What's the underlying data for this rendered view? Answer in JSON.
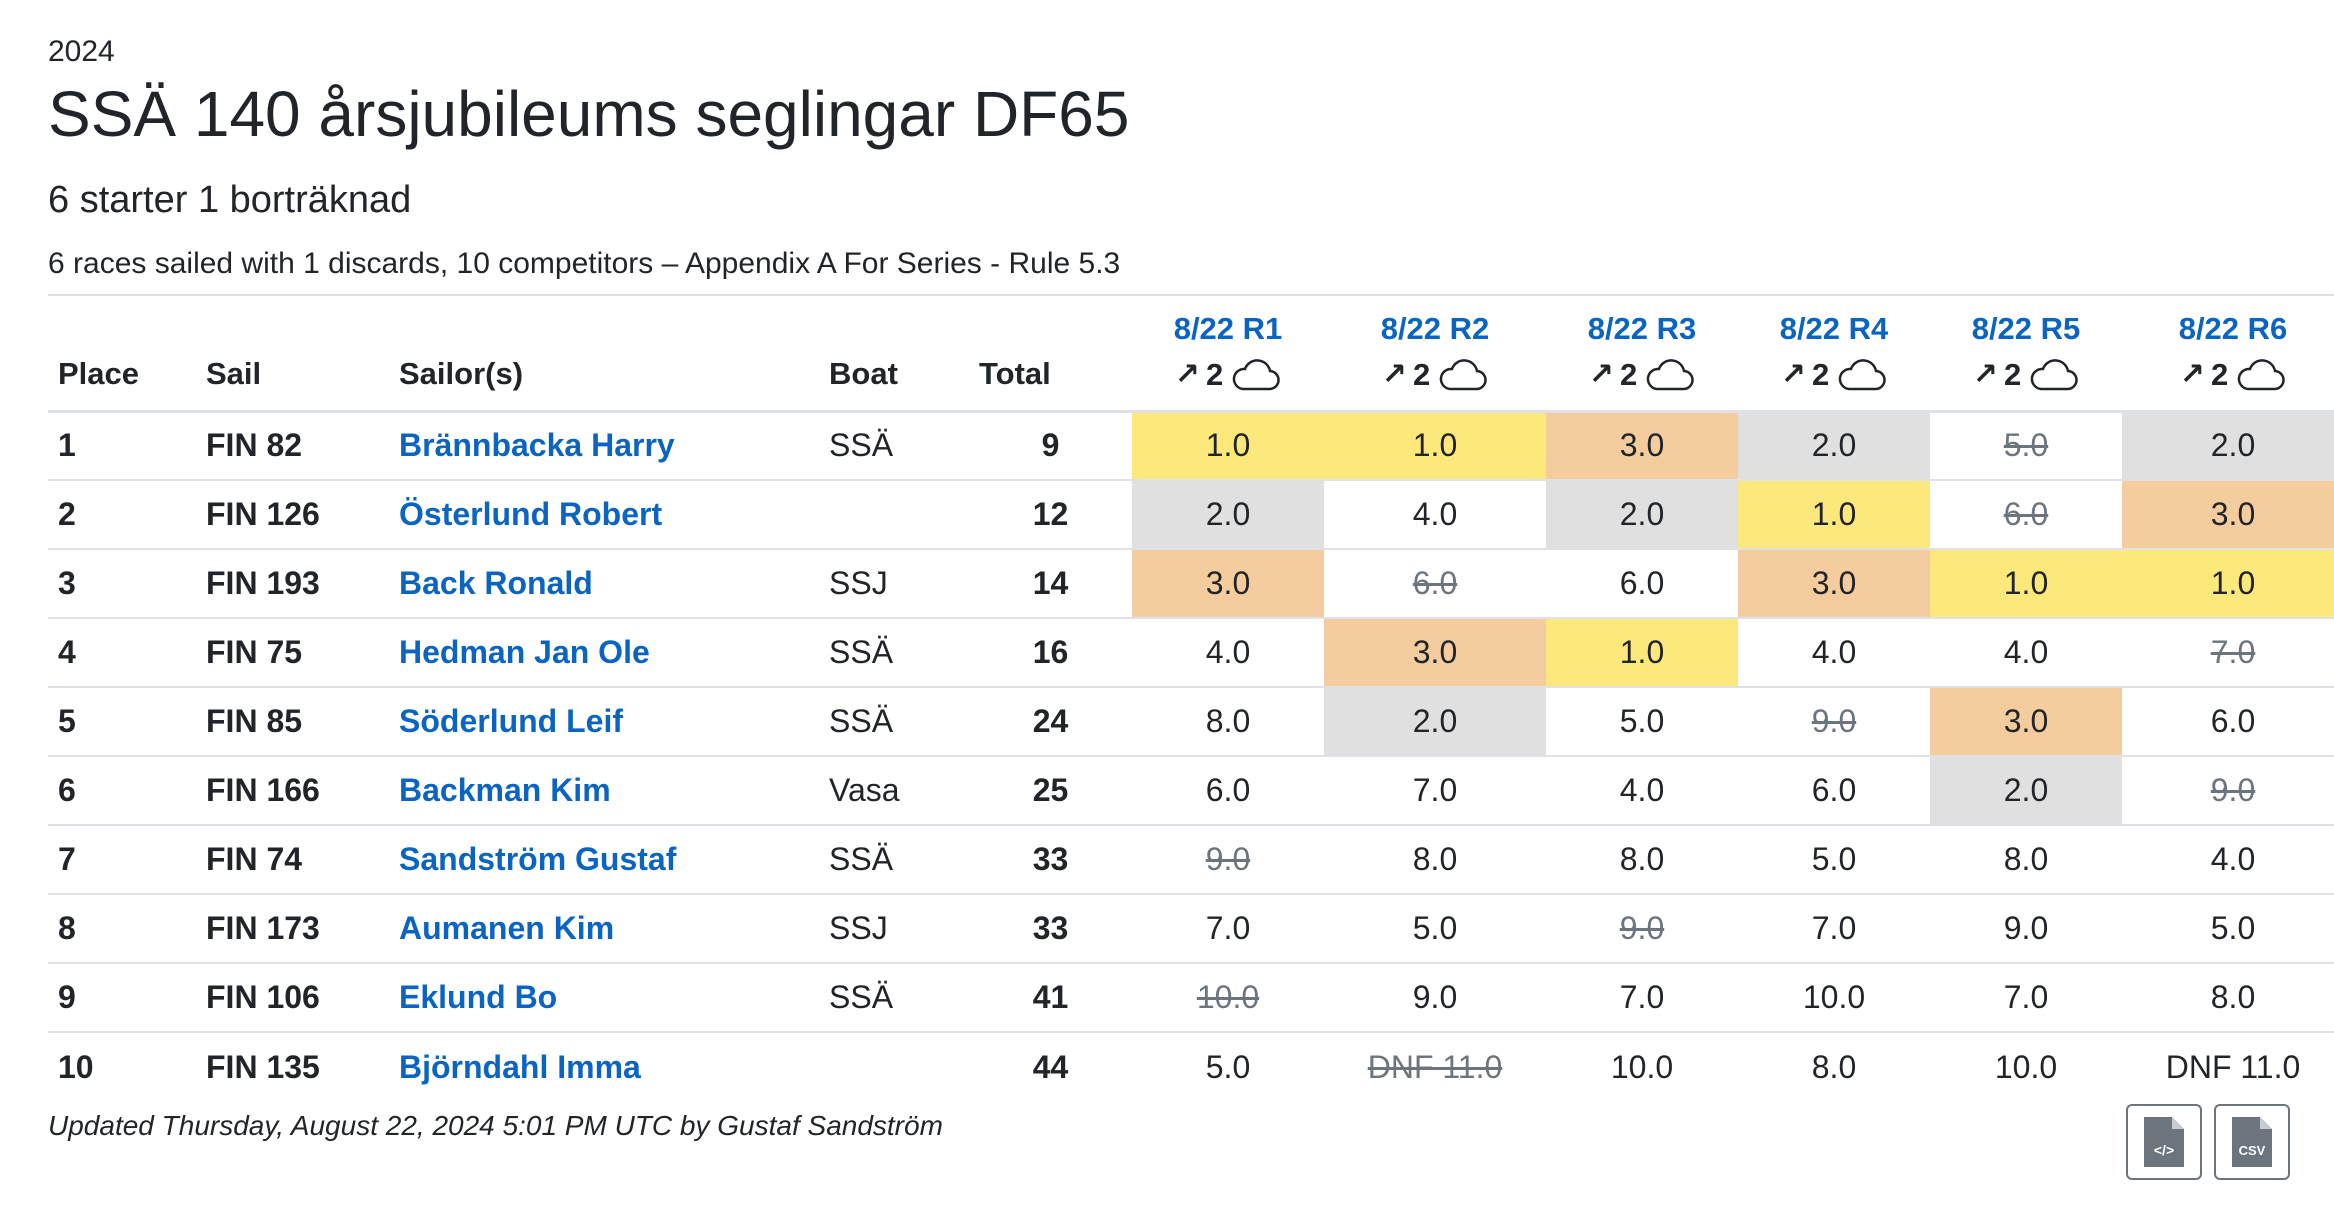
{
  "header": {
    "year": "2024",
    "title": "SSÄ 140 årsjubileums seglingar DF65",
    "subtitle": "6 starter 1 borträknad",
    "summary": "6 races sailed with 1 discards, 10 competitors – Appendix A For Series - Rule 5.3"
  },
  "columns": {
    "place": "Place",
    "sail": "Sail",
    "sailor": "Sailor(s)",
    "boat": "Boat",
    "total": "Total"
  },
  "races": [
    {
      "label": "8/22 R1",
      "wind": "2",
      "arrow_icon": "north-east-arrow-icon",
      "weather_icon": "cloud-icon"
    },
    {
      "label": "8/22 R2",
      "wind": "2",
      "arrow_icon": "north-east-arrow-icon",
      "weather_icon": "cloud-icon"
    },
    {
      "label": "8/22 R3",
      "wind": "2",
      "arrow_icon": "north-east-arrow-icon",
      "weather_icon": "cloud-icon"
    },
    {
      "label": "8/22 R4",
      "wind": "2",
      "arrow_icon": "north-east-arrow-icon",
      "weather_icon": "cloud-icon"
    },
    {
      "label": "8/22 R5",
      "wind": "2",
      "arrow_icon": "north-east-arrow-icon",
      "weather_icon": "cloud-icon"
    },
    {
      "label": "8/22 R6",
      "wind": "2",
      "arrow_icon": "north-east-arrow-icon",
      "weather_icon": "cloud-icon"
    }
  ],
  "highlight_colors": {
    "first": "#fde87b",
    "second": "#e0e0e0",
    "third": "#f4cc9e",
    "link": "#0b64c1"
  },
  "rows": [
    {
      "place": "1",
      "sail": "FIN 82",
      "sailor": "Brännbacka Harry",
      "boat": "SSÄ",
      "total": "9",
      "scores": [
        {
          "v": "1.0",
          "h": 1
        },
        {
          "v": "1.0",
          "h": 1
        },
        {
          "v": "3.0",
          "h": 3
        },
        {
          "v": "2.0",
          "h": 2
        },
        {
          "v": "5.0",
          "d": true
        },
        {
          "v": "2.0",
          "h": 2
        }
      ]
    },
    {
      "place": "2",
      "sail": "FIN 126",
      "sailor": "Österlund Robert",
      "boat": "",
      "total": "12",
      "scores": [
        {
          "v": "2.0",
          "h": 2
        },
        {
          "v": "4.0"
        },
        {
          "v": "2.0",
          "h": 2
        },
        {
          "v": "1.0",
          "h": 1
        },
        {
          "v": "6.0",
          "d": true
        },
        {
          "v": "3.0",
          "h": 3
        }
      ]
    },
    {
      "place": "3",
      "sail": "FIN 193",
      "sailor": "Back Ronald",
      "boat": "SSJ",
      "total": "14",
      "scores": [
        {
          "v": "3.0",
          "h": 3
        },
        {
          "v": "6.0",
          "d": true
        },
        {
          "v": "6.0"
        },
        {
          "v": "3.0",
          "h": 3
        },
        {
          "v": "1.0",
          "h": 1
        },
        {
          "v": "1.0",
          "h": 1
        }
      ]
    },
    {
      "place": "4",
      "sail": "FIN 75",
      "sailor": "Hedman Jan Ole",
      "boat": "SSÄ",
      "total": "16",
      "scores": [
        {
          "v": "4.0"
        },
        {
          "v": "3.0",
          "h": 3
        },
        {
          "v": "1.0",
          "h": 1
        },
        {
          "v": "4.0"
        },
        {
          "v": "4.0"
        },
        {
          "v": "7.0",
          "d": true
        }
      ]
    },
    {
      "place": "5",
      "sail": "FIN 85",
      "sailor": "Söderlund Leif",
      "boat": "SSÄ",
      "total": "24",
      "scores": [
        {
          "v": "8.0"
        },
        {
          "v": "2.0",
          "h": 2
        },
        {
          "v": "5.0"
        },
        {
          "v": "9.0",
          "d": true
        },
        {
          "v": "3.0",
          "h": 3
        },
        {
          "v": "6.0"
        }
      ]
    },
    {
      "place": "6",
      "sail": "FIN 166",
      "sailor": "Backman Kim",
      "boat": "Vasa",
      "total": "25",
      "scores": [
        {
          "v": "6.0"
        },
        {
          "v": "7.0"
        },
        {
          "v": "4.0"
        },
        {
          "v": "6.0"
        },
        {
          "v": "2.0",
          "h": 2
        },
        {
          "v": "9.0",
          "d": true
        }
      ]
    },
    {
      "place": "7",
      "sail": "FIN 74",
      "sailor": "Sandström Gustaf",
      "boat": "SSÄ",
      "total": "33",
      "scores": [
        {
          "v": "9.0",
          "d": true
        },
        {
          "v": "8.0"
        },
        {
          "v": "8.0"
        },
        {
          "v": "5.0"
        },
        {
          "v": "8.0"
        },
        {
          "v": "4.0"
        }
      ]
    },
    {
      "place": "8",
      "sail": "FIN 173",
      "sailor": "Aumanen Kim",
      "boat": "SSJ",
      "total": "33",
      "scores": [
        {
          "v": "7.0"
        },
        {
          "v": "5.0"
        },
        {
          "v": "9.0",
          "d": true
        },
        {
          "v": "7.0"
        },
        {
          "v": "9.0"
        },
        {
          "v": "5.0"
        }
      ]
    },
    {
      "place": "9",
      "sail": "FIN 106",
      "sailor": "Eklund Bo",
      "boat": "SSÄ",
      "total": "41",
      "scores": [
        {
          "v": "10.0",
          "d": true
        },
        {
          "v": "9.0"
        },
        {
          "v": "7.0"
        },
        {
          "v": "10.0"
        },
        {
          "v": "7.0"
        },
        {
          "v": "8.0"
        }
      ]
    },
    {
      "place": "10",
      "sail": "FIN 135",
      "sailor": "Björndahl Imma",
      "boat": "",
      "total": "44",
      "scores": [
        {
          "v": "5.0"
        },
        {
          "v": "DNF 11.0",
          "d": true
        },
        {
          "v": "10.0"
        },
        {
          "v": "8.0"
        },
        {
          "v": "10.0"
        },
        {
          "v": "DNF 11.0"
        }
      ]
    }
  ],
  "footer": {
    "updated": "Updated Thursday, August 22, 2024 5:01 PM UTC by Gustaf Sandström"
  },
  "downloads": [
    {
      "icon": "code-file-icon",
      "label": "</>"
    },
    {
      "icon": "csv-file-icon",
      "label": "CSV"
    }
  ]
}
